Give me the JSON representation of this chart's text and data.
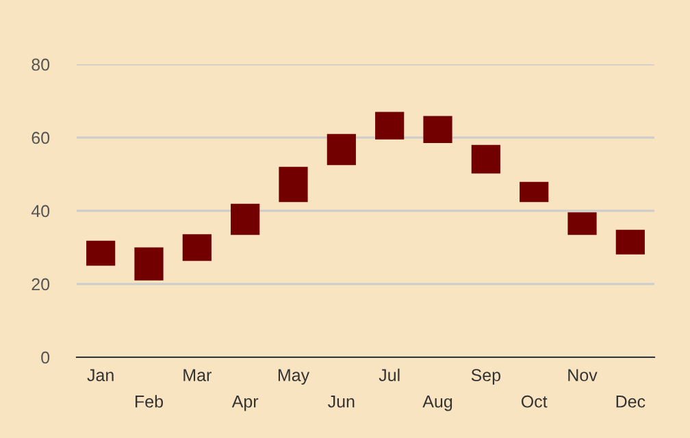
{
  "chart_data": {
    "type": "bar",
    "categories": [
      "Jan",
      "Feb",
      "Mar",
      "Apr",
      "May",
      "Jun",
      "Jul",
      "Aug",
      "Sep",
      "Oct",
      "Nov",
      "Dec"
    ],
    "base": [
      25,
      21,
      26.3,
      33.4,
      42.4,
      52.5,
      59.5,
      58.5,
      50.2,
      42.4,
      33.4,
      28.1
    ],
    "values": [
      6.8,
      9,
      7.3,
      8.5,
      9.6,
      8.5,
      7.5,
      7.4,
      7.8,
      5.5,
      6.2,
      6.7
    ],
    "color": "#730000",
    "ylim": [
      0,
      80
    ],
    "yticks": [
      0,
      20,
      40,
      60,
      80
    ],
    "grid": "y"
  }
}
